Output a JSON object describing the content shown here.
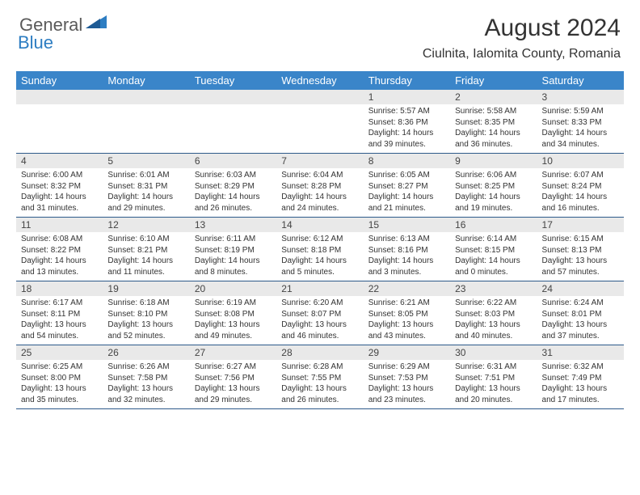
{
  "logo": {
    "general": "General",
    "blue": "Blue"
  },
  "title": "August 2024",
  "location": "Ciulnita, Ialomita County, Romania",
  "colors": {
    "header_bg": "#3a85c9",
    "header_text": "#ffffff",
    "daynum_bg": "#e9e9e9",
    "rule": "#2d5a8a",
    "logo_blue": "#2d7dc2"
  },
  "weekdays": [
    "Sunday",
    "Monday",
    "Tuesday",
    "Wednesday",
    "Thursday",
    "Friday",
    "Saturday"
  ],
  "weeks": [
    [
      null,
      null,
      null,
      null,
      {
        "n": "1",
        "sr": "5:57 AM",
        "ss": "8:36 PM",
        "dh": 14,
        "dm": 39
      },
      {
        "n": "2",
        "sr": "5:58 AM",
        "ss": "8:35 PM",
        "dh": 14,
        "dm": 36
      },
      {
        "n": "3",
        "sr": "5:59 AM",
        "ss": "8:33 PM",
        "dh": 14,
        "dm": 34
      }
    ],
    [
      {
        "n": "4",
        "sr": "6:00 AM",
        "ss": "8:32 PM",
        "dh": 14,
        "dm": 31
      },
      {
        "n": "5",
        "sr": "6:01 AM",
        "ss": "8:31 PM",
        "dh": 14,
        "dm": 29
      },
      {
        "n": "6",
        "sr": "6:03 AM",
        "ss": "8:29 PM",
        "dh": 14,
        "dm": 26
      },
      {
        "n": "7",
        "sr": "6:04 AM",
        "ss": "8:28 PM",
        "dh": 14,
        "dm": 24
      },
      {
        "n": "8",
        "sr": "6:05 AM",
        "ss": "8:27 PM",
        "dh": 14,
        "dm": 21
      },
      {
        "n": "9",
        "sr": "6:06 AM",
        "ss": "8:25 PM",
        "dh": 14,
        "dm": 19
      },
      {
        "n": "10",
        "sr": "6:07 AM",
        "ss": "8:24 PM",
        "dh": 14,
        "dm": 16
      }
    ],
    [
      {
        "n": "11",
        "sr": "6:08 AM",
        "ss": "8:22 PM",
        "dh": 14,
        "dm": 13
      },
      {
        "n": "12",
        "sr": "6:10 AM",
        "ss": "8:21 PM",
        "dh": 14,
        "dm": 11
      },
      {
        "n": "13",
        "sr": "6:11 AM",
        "ss": "8:19 PM",
        "dh": 14,
        "dm": 8
      },
      {
        "n": "14",
        "sr": "6:12 AM",
        "ss": "8:18 PM",
        "dh": 14,
        "dm": 5
      },
      {
        "n": "15",
        "sr": "6:13 AM",
        "ss": "8:16 PM",
        "dh": 14,
        "dm": 3
      },
      {
        "n": "16",
        "sr": "6:14 AM",
        "ss": "8:15 PM",
        "dh": 14,
        "dm": 0
      },
      {
        "n": "17",
        "sr": "6:15 AM",
        "ss": "8:13 PM",
        "dh": 13,
        "dm": 57
      }
    ],
    [
      {
        "n": "18",
        "sr": "6:17 AM",
        "ss": "8:11 PM",
        "dh": 13,
        "dm": 54
      },
      {
        "n": "19",
        "sr": "6:18 AM",
        "ss": "8:10 PM",
        "dh": 13,
        "dm": 52
      },
      {
        "n": "20",
        "sr": "6:19 AM",
        "ss": "8:08 PM",
        "dh": 13,
        "dm": 49
      },
      {
        "n": "21",
        "sr": "6:20 AM",
        "ss": "8:07 PM",
        "dh": 13,
        "dm": 46
      },
      {
        "n": "22",
        "sr": "6:21 AM",
        "ss": "8:05 PM",
        "dh": 13,
        "dm": 43
      },
      {
        "n": "23",
        "sr": "6:22 AM",
        "ss": "8:03 PM",
        "dh": 13,
        "dm": 40
      },
      {
        "n": "24",
        "sr": "6:24 AM",
        "ss": "8:01 PM",
        "dh": 13,
        "dm": 37
      }
    ],
    [
      {
        "n": "25",
        "sr": "6:25 AM",
        "ss": "8:00 PM",
        "dh": 13,
        "dm": 35
      },
      {
        "n": "26",
        "sr": "6:26 AM",
        "ss": "7:58 PM",
        "dh": 13,
        "dm": 32
      },
      {
        "n": "27",
        "sr": "6:27 AM",
        "ss": "7:56 PM",
        "dh": 13,
        "dm": 29
      },
      {
        "n": "28",
        "sr": "6:28 AM",
        "ss": "7:55 PM",
        "dh": 13,
        "dm": 26
      },
      {
        "n": "29",
        "sr": "6:29 AM",
        "ss": "7:53 PM",
        "dh": 13,
        "dm": 23
      },
      {
        "n": "30",
        "sr": "6:31 AM",
        "ss": "7:51 PM",
        "dh": 13,
        "dm": 20
      },
      {
        "n": "31",
        "sr": "6:32 AM",
        "ss": "7:49 PM",
        "dh": 13,
        "dm": 17
      }
    ]
  ]
}
